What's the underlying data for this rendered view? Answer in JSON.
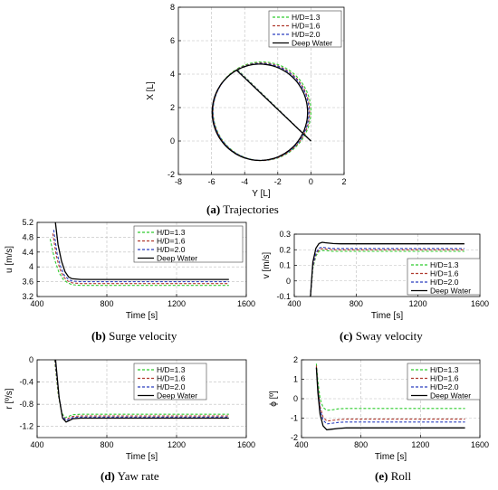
{
  "captions": {
    "a": {
      "tag": "(a)",
      "text": "Trajectories"
    },
    "b": {
      "tag": "(b)",
      "text": "Surge velocity"
    },
    "c": {
      "tag": "(c)",
      "text": "Sway velocity"
    },
    "d": {
      "tag": "(d)",
      "text": "Yaw rate"
    },
    "e": {
      "tag": "(e)",
      "text": "Roll"
    }
  },
  "legend": [
    {
      "name": "H/D=1.3",
      "color": "#2ecc2e",
      "dash": true
    },
    {
      "name": "H/D=1.6",
      "color": "#b03a2e",
      "dash": true
    },
    {
      "name": "H/D=2.0",
      "color": "#2a3fbf",
      "dash": true
    },
    {
      "name": "Deep Water",
      "color": "#000000",
      "dash": false
    }
  ],
  "chart_data": [
    {
      "id": "a",
      "type": "line",
      "xlabel": "Y [L]",
      "ylabel": "X [L]",
      "xlim": [
        -8,
        2
      ],
      "ylim": [
        -2,
        8
      ],
      "xticks": [
        -8,
        -6,
        -4,
        -2,
        0,
        2
      ],
      "yticks": [
        -2,
        0,
        2,
        4,
        6,
        8
      ],
      "xtick_labels": [
        "-8",
        "-6",
        "-4",
        "-2",
        "0",
        "2"
      ],
      "ytick_labels": [
        "-2",
        "0",
        "2",
        "4",
        "6",
        "8"
      ],
      "grid": true,
      "legend_position": "top-right",
      "series": [
        {
          "name": "H/D=1.3",
          "circle": {
            "cy": -2.95,
            "cx": 1.78,
            "r": 2.95
          },
          "start": [
            0,
            0
          ]
        },
        {
          "name": "H/D=1.6",
          "circle": {
            "cy": -3.0,
            "cx": 1.75,
            "r": 2.92
          },
          "start": [
            0,
            0
          ]
        },
        {
          "name": "H/D=2.0",
          "circle": {
            "cy": -3.02,
            "cx": 1.74,
            "r": 2.9
          },
          "start": [
            0,
            0
          ]
        },
        {
          "name": "Deep Water",
          "circle": {
            "cy": -3.08,
            "cx": 1.72,
            "r": 2.88
          },
          "start": [
            0,
            0
          ]
        }
      ]
    },
    {
      "id": "b",
      "type": "line",
      "xlabel": "Time [s]",
      "ylabel": "u [m/s]",
      "xlim": [
        400,
        1600
      ],
      "ylim": [
        3.2,
        5.2
      ],
      "xticks": [
        400,
        800,
        1200,
        1600
      ],
      "yticks": [
        3.2,
        3.6,
        4.0,
        4.4,
        4.8,
        5.2
      ],
      "xtick_labels": [
        "400",
        "800",
        "1200",
        "1600"
      ],
      "ytick_labels": [
        "3.2",
        "3.6",
        "4",
        "4.4",
        "4.8",
        "5.2"
      ],
      "grid": true,
      "legend_position": "top-right",
      "series": [
        {
          "name": "H/D=1.3",
          "x": [
            475,
            500,
            525,
            550,
            575,
            600,
            650,
            700,
            800,
            1000,
            1200,
            1500
          ],
          "y": [
            4.75,
            4.2,
            3.85,
            3.66,
            3.57,
            3.52,
            3.5,
            3.5,
            3.5,
            3.5,
            3.5,
            3.5
          ]
        },
        {
          "name": "H/D=1.6",
          "x": [
            490,
            510,
            530,
            550,
            575,
            600,
            650,
            700,
            800,
            1000,
            1200,
            1500
          ],
          "y": [
            4.9,
            4.3,
            3.95,
            3.74,
            3.62,
            3.57,
            3.55,
            3.55,
            3.55,
            3.55,
            3.55,
            3.55
          ]
        },
        {
          "name": "H/D=2.0",
          "x": [
            495,
            515,
            535,
            555,
            580,
            600,
            650,
            700,
            800,
            1000,
            1200,
            1500
          ],
          "y": [
            5.0,
            4.35,
            4.0,
            3.78,
            3.66,
            3.62,
            3.6,
            3.6,
            3.6,
            3.6,
            3.6,
            3.6
          ]
        },
        {
          "name": "Deep Water",
          "x": [
            505,
            520,
            540,
            560,
            580,
            600,
            650,
            700,
            800,
            1000,
            1200,
            1500
          ],
          "y": [
            5.2,
            4.6,
            4.15,
            3.87,
            3.73,
            3.68,
            3.66,
            3.66,
            3.66,
            3.66,
            3.66,
            3.66
          ]
        }
      ]
    },
    {
      "id": "c",
      "type": "line",
      "xlabel": "Time [s]",
      "ylabel": "v [m/s]",
      "xlim": [
        400,
        1600
      ],
      "ylim": [
        -0.1,
        0.3
      ],
      "xticks": [
        400,
        800,
        1200,
        1600
      ],
      "yticks": [
        -0.1,
        0,
        0.1,
        0.2,
        0.3
      ],
      "xtick_labels": [
        "400",
        "800",
        "1200",
        "1600"
      ],
      "ytick_labels": [
        "-0.1",
        "0",
        "0.1",
        "0.2",
        "0.3"
      ],
      "grid": true,
      "legend_position": "bottom-right",
      "series": [
        {
          "name": "H/D=1.3",
          "x": [
            505,
            520,
            540,
            560,
            580,
            600,
            650,
            700,
            800,
            1000,
            1200,
            1500
          ],
          "y": [
            -0.1,
            0.08,
            0.16,
            0.19,
            0.195,
            0.195,
            0.19,
            0.19,
            0.19,
            0.19,
            0.19,
            0.19
          ]
        },
        {
          "name": "H/D=1.6",
          "x": [
            505,
            520,
            540,
            560,
            580,
            600,
            650,
            700,
            800,
            1000,
            1200,
            1500
          ],
          "y": [
            -0.1,
            0.09,
            0.17,
            0.2,
            0.208,
            0.205,
            0.2,
            0.2,
            0.2,
            0.2,
            0.2,
            0.2
          ]
        },
        {
          "name": "H/D=2.0",
          "x": [
            505,
            520,
            540,
            560,
            580,
            600,
            650,
            700,
            800,
            1000,
            1200,
            1500
          ],
          "y": [
            -0.1,
            0.1,
            0.18,
            0.21,
            0.217,
            0.213,
            0.208,
            0.208,
            0.208,
            0.208,
            0.208,
            0.208
          ]
        },
        {
          "name": "Deep Water",
          "x": [
            505,
            520,
            540,
            560,
            580,
            600,
            650,
            700,
            800,
            1000,
            1200,
            1500
          ],
          "y": [
            -0.1,
            0.12,
            0.21,
            0.24,
            0.248,
            0.245,
            0.24,
            0.238,
            0.238,
            0.238,
            0.238,
            0.238
          ]
        }
      ]
    },
    {
      "id": "d",
      "type": "line",
      "xlabel": "Time [s]",
      "ylabel": "r [º/s]",
      "xlim": [
        400,
        1600
      ],
      "ylim": [
        -1.4,
        0
      ],
      "xticks": [
        400,
        800,
        1200,
        1600
      ],
      "yticks": [
        -1.2,
        -0.8,
        -0.4,
        0
      ],
      "xtick_labels": [
        "400",
        "800",
        "1200",
        "1600"
      ],
      "ytick_labels": [
        "-1.2",
        "-0.8",
        "-0.4",
        "0"
      ],
      "grid": true,
      "legend_position": "top-right",
      "series": [
        {
          "name": "H/D=1.3",
          "x": [
            500,
            520,
            540,
            560,
            580,
            600,
            650,
            700,
            800,
            1000,
            1200,
            1500
          ],
          "y": [
            0,
            -0.6,
            -0.95,
            -1.04,
            -1.02,
            -0.99,
            -0.98,
            -0.98,
            -0.98,
            -0.98,
            -0.98,
            -0.98
          ]
        },
        {
          "name": "H/D=1.6",
          "x": [
            502,
            522,
            542,
            562,
            582,
            602,
            650,
            700,
            800,
            1000,
            1200,
            1500
          ],
          "y": [
            0,
            -0.62,
            -0.98,
            -1.07,
            -1.05,
            -1.02,
            -1.01,
            -1.01,
            -1.01,
            -1.01,
            -1.01,
            -1.01
          ]
        },
        {
          "name": "H/D=2.0",
          "x": [
            504,
            524,
            544,
            564,
            584,
            604,
            650,
            700,
            800,
            1000,
            1200,
            1500
          ],
          "y": [
            0,
            -0.64,
            -1.0,
            -1.09,
            -1.07,
            -1.04,
            -1.03,
            -1.03,
            -1.03,
            -1.03,
            -1.03,
            -1.03
          ]
        },
        {
          "name": "Deep Water",
          "x": [
            506,
            526,
            546,
            566,
            586,
            606,
            650,
            700,
            800,
            1000,
            1200,
            1500
          ],
          "y": [
            0,
            -0.68,
            -1.05,
            -1.12,
            -1.09,
            -1.06,
            -1.05,
            -1.05,
            -1.05,
            -1.05,
            -1.05,
            -1.05
          ]
        }
      ]
    },
    {
      "id": "e",
      "type": "line",
      "xlabel": "Time [s]",
      "ylabel": "ϕ [º]",
      "xlim": [
        400,
        1600
      ],
      "ylim": [
        -2,
        2
      ],
      "xticks": [
        400,
        800,
        1200,
        1600
      ],
      "yticks": [
        -2,
        -1,
        0,
        1,
        2
      ],
      "xtick_labels": [
        "400",
        "800",
        "1200",
        "1600"
      ],
      "ytick_labels": [
        "-2",
        "-1",
        "0",
        "1",
        "2"
      ],
      "grid": true,
      "legend_position": "top-right",
      "series": [
        {
          "name": "H/D=1.3",
          "x": [
            500,
            510,
            525,
            545,
            570,
            600,
            650,
            700,
            800,
            1000,
            1200,
            1500
          ],
          "y": [
            1.8,
            0.9,
            0.0,
            -0.45,
            -0.6,
            -0.58,
            -0.52,
            -0.5,
            -0.5,
            -0.5,
            -0.5,
            -0.5
          ]
        },
        {
          "name": "H/D=1.6",
          "x": [
            500,
            510,
            525,
            545,
            570,
            600,
            650,
            700,
            800,
            1000,
            1200,
            1500
          ],
          "y": [
            1.7,
            0.6,
            -0.4,
            -0.95,
            -1.15,
            -1.12,
            -1.08,
            -1.05,
            -1.05,
            -1.05,
            -1.05,
            -1.05
          ]
        },
        {
          "name": "H/D=2.0",
          "x": [
            500,
            510,
            525,
            545,
            570,
            600,
            650,
            700,
            800,
            1000,
            1200,
            1500
          ],
          "y": [
            1.6,
            0.5,
            -0.55,
            -1.1,
            -1.3,
            -1.27,
            -1.22,
            -1.2,
            -1.2,
            -1.2,
            -1.2,
            -1.2
          ]
        },
        {
          "name": "Deep Water",
          "x": [
            500,
            510,
            525,
            545,
            570,
            600,
            650,
            700,
            800,
            1000,
            1200,
            1500
          ],
          "y": [
            1.6,
            0.3,
            -0.8,
            -1.4,
            -1.6,
            -1.57,
            -1.53,
            -1.5,
            -1.5,
            -1.5,
            -1.5,
            -1.5
          ]
        }
      ]
    }
  ]
}
